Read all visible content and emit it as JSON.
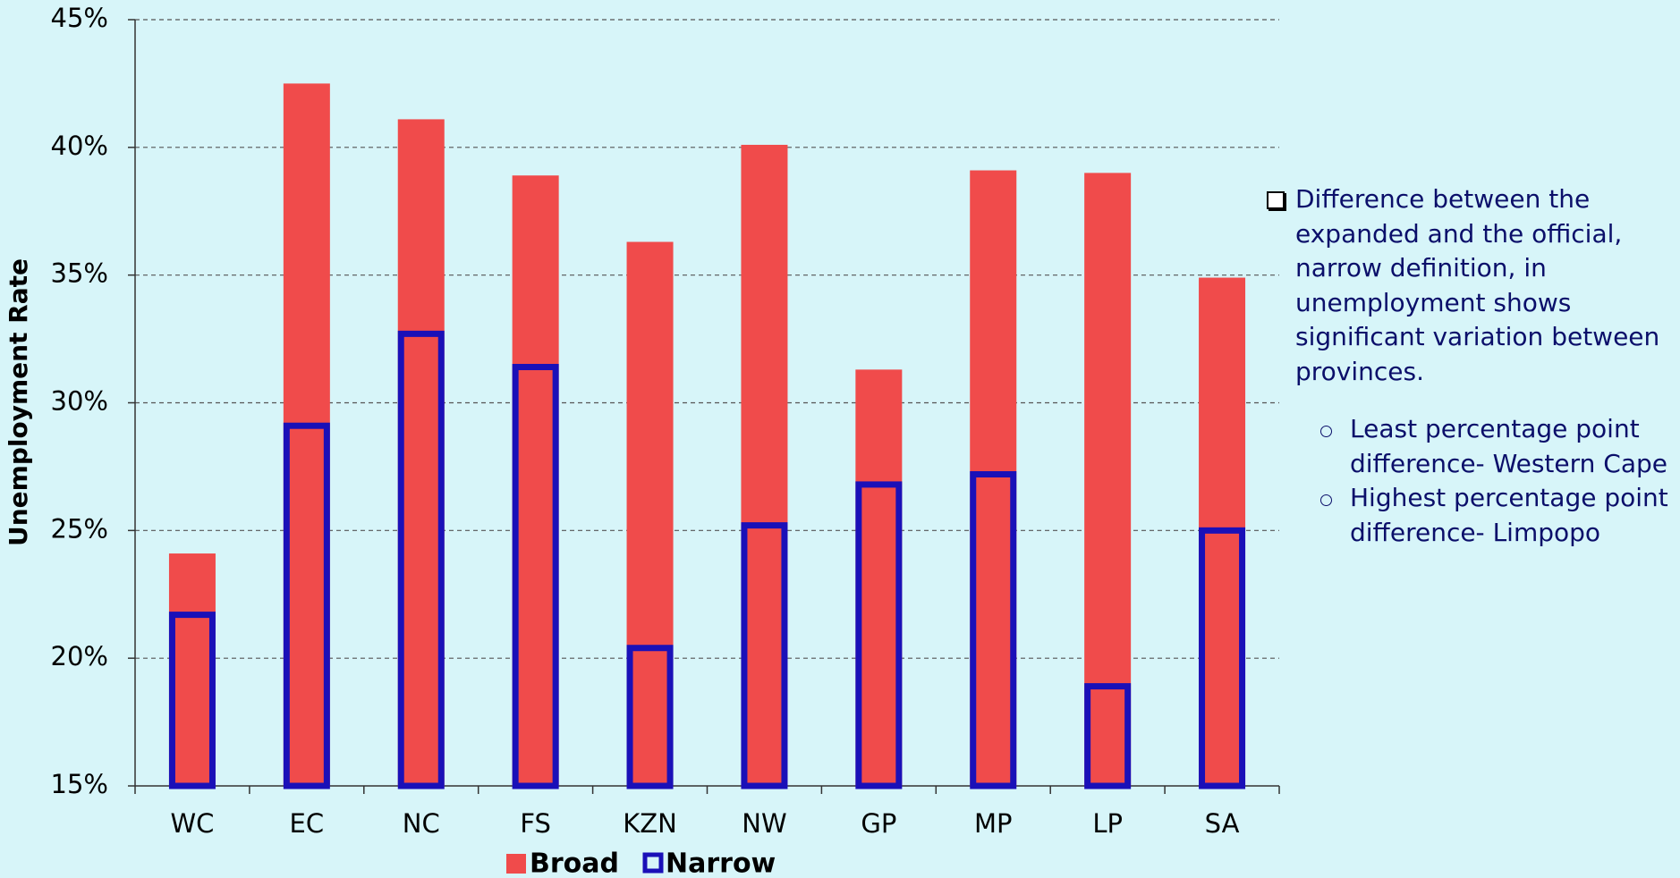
{
  "chart_data": {
    "type": "bar",
    "y_label": "Unemployment Rate",
    "categories": [
      "WC",
      "EC",
      "NC",
      "FS",
      "KZN",
      "NW",
      "GP",
      "MP",
      "LP",
      "SA"
    ],
    "series": [
      {
        "name": "Broad",
        "color": "#f04b4b",
        "style": "filled",
        "values": [
          24.1,
          42.5,
          41.1,
          38.9,
          36.3,
          40.1,
          31.3,
          39.1,
          39.0,
          34.9
        ]
      },
      {
        "name": "Narrow",
        "color": "#1a10b8",
        "style": "outline",
        "values": [
          21.7,
          29.1,
          32.7,
          31.4,
          20.4,
          25.2,
          26.8,
          27.2,
          18.9,
          25.0
        ]
      }
    ],
    "ylim": [
      15,
      45
    ],
    "yticks": [
      {
        "value": 15,
        "label": "15%"
      },
      {
        "value": 20,
        "label": "20%"
      },
      {
        "value": 25,
        "label": "25%"
      },
      {
        "value": 30,
        "label": "30%"
      },
      {
        "value": 35,
        "label": "35%"
      },
      {
        "value": 40,
        "label": "40%"
      },
      {
        "value": 45,
        "label": "45%"
      }
    ],
    "grid": true,
    "legend": "bottom",
    "annotation": {
      "text": "Difference between the expanded and the official, narrow definition, in unemployment shows significant variation between provinces.",
      "points": [
        "Least percentage point difference- Western Cape",
        "Highest percentage point difference- Limpopo"
      ]
    }
  }
}
